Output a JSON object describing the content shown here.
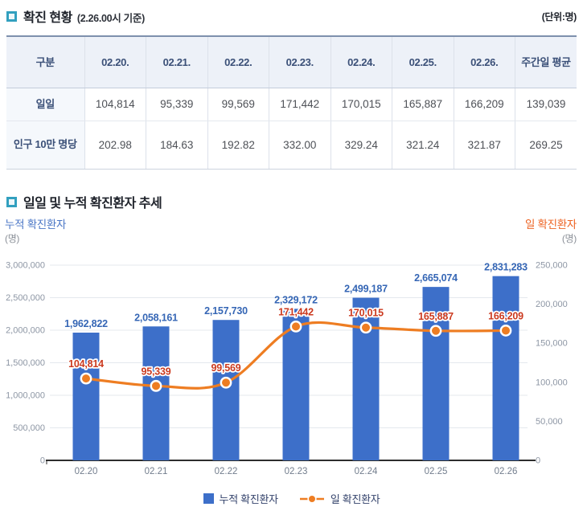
{
  "header": {
    "title": "확진 현황",
    "subtitle": "(2.26.00시 기준)",
    "unit_note": "(단위:명)",
    "bullet_color": "#32a0bf"
  },
  "table": {
    "columns": [
      "구분",
      "02.20.",
      "02.21.",
      "02.22.",
      "02.23.",
      "02.24.",
      "02.25.",
      "02.26.",
      "주간일 평균"
    ],
    "rows": [
      {
        "label": "일일",
        "values": [
          "104,814",
          "95,339",
          "99,569",
          "171,442",
          "170,015",
          "165,887",
          "166,209",
          "139,039"
        ]
      },
      {
        "label": "인구 10만 명당",
        "values": [
          "202.98",
          "184.63",
          "192.82",
          "332.00",
          "329.24",
          "321.24",
          "321.87",
          "269.25"
        ]
      }
    ]
  },
  "section2": {
    "title": "일일 및 누적 확진환자 추세"
  },
  "chart_data": {
    "type": "bar+line combo",
    "categories": [
      "02.20",
      "02.21",
      "02.22",
      "02.23",
      "02.24",
      "02.25",
      "02.26"
    ],
    "series": [
      {
        "name": "누적 확진환자",
        "type": "bar",
        "axis": "left",
        "values": [
          1962822,
          2058161,
          2157730,
          2329172,
          2499187,
          2665074,
          2831283
        ],
        "color": "#3d6fc9",
        "label_color": "#3566b5"
      },
      {
        "name": "일 확진환자",
        "type": "line",
        "axis": "right",
        "values": [
          104814,
          95339,
          99569,
          171442,
          170015,
          165887,
          166209
        ],
        "color": "#ee7d22",
        "label_color": "#cb3a1f"
      }
    ],
    "left_axis": {
      "title": "누적 확진환자",
      "unit": "(명)",
      "min": 0,
      "max": 3000000,
      "step": 500000
    },
    "right_axis": {
      "title": "일 확진환자",
      "unit": "(명)",
      "min": 0,
      "max": 250000,
      "step": 50000
    },
    "grid": true,
    "legend_position": "bottom"
  }
}
